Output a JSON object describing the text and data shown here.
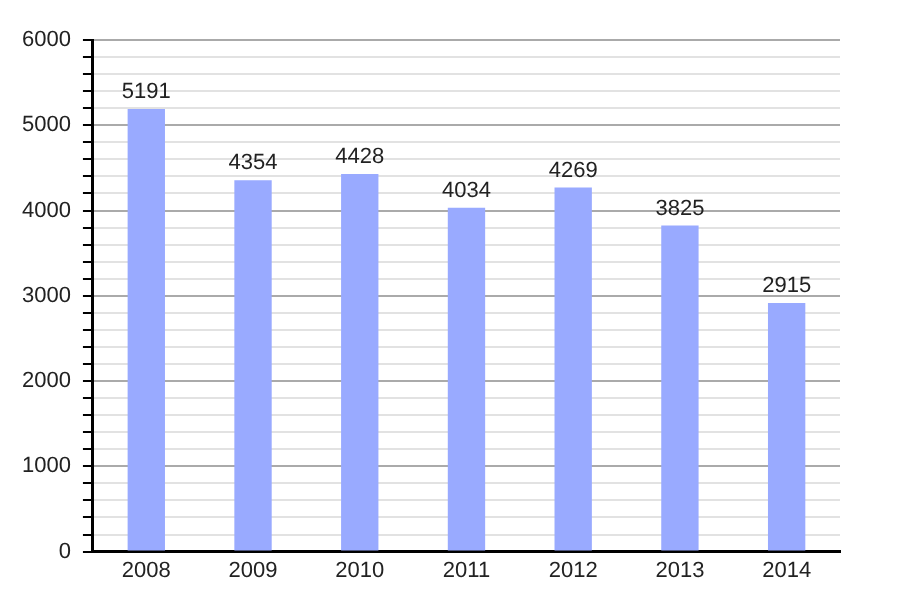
{
  "chart_data": {
    "type": "bar",
    "categories": [
      "2008",
      "2009",
      "2010",
      "2011",
      "2012",
      "2013",
      "2014"
    ],
    "values": [
      5191,
      4354,
      4428,
      4034,
      4269,
      3825,
      2915
    ],
    "color": "#99aaff",
    "data_labels": true,
    "grid": "y",
    "legend": false,
    "ylim": [
      0,
      6000
    ],
    "yticks": [
      0,
      {
        "value": 200,
        "label": null
      },
      {
        "value": 400,
        "label": null
      },
      {
        "value": 600,
        "label": null
      },
      {
        "value": 800,
        "label": null
      },
      1000,
      {
        "value": 1200,
        "label": null
      },
      {
        "value": 1400,
        "label": null
      },
      {
        "value": 1600,
        "label": null
      },
      {
        "value": 1800,
        "label": null
      },
      2000,
      {
        "value": 2200,
        "label": null
      },
      {
        "value": 2400,
        "label": null
      },
      {
        "value": 2600,
        "label": null
      },
      {
        "value": 2800,
        "label": null
      },
      3000,
      {
        "value": 3200,
        "label": null
      },
      {
        "value": 3400,
        "label": null
      },
      {
        "value": 3600,
        "label": null
      },
      {
        "value": 3800,
        "label": null
      },
      4000,
      {
        "value": 4200,
        "label": null
      },
      {
        "value": 4400,
        "label": null
      },
      {
        "value": 4600,
        "label": null
      },
      {
        "value": 4800,
        "label": null
      },
      5000,
      {
        "value": 5200,
        "label": null
      },
      {
        "value": 5400,
        "label": null
      },
      {
        "value": 5600,
        "label": null
      },
      {
        "value": 5800,
        "label": null
      },
      6000
    ]
  }
}
